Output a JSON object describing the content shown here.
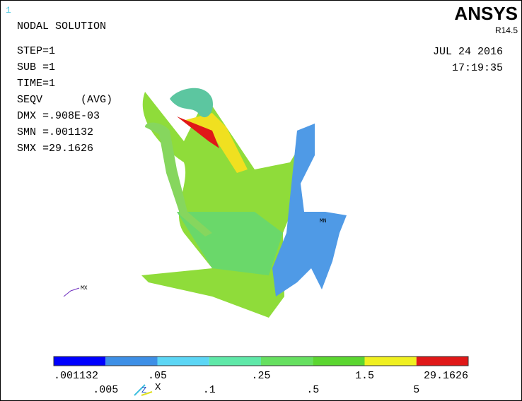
{
  "window_number": "1",
  "header": {
    "title": "NODAL SOLUTION",
    "info": [
      "STEP=1",
      "SUB =1",
      "TIME=1",
      "SEQV      (AVG)",
      "DMX =.908E-03",
      "SMN =.001132",
      "SMX =29.1626"
    ]
  },
  "brand": {
    "name": "ANSYS",
    "version": "R14.5",
    "date": "JUL 24 2016",
    "time": "17:19:35"
  },
  "markers": {
    "min": "MN",
    "max": "MX"
  },
  "triad": {
    "x": "X",
    "z": "Z"
  },
  "legend": {
    "colors": [
      "#0000ff",
      "#3d8fe6",
      "#5cd6f5",
      "#5fe8a8",
      "#66e060",
      "#5bd630",
      "#f0f020",
      "#e01818"
    ],
    "labels_top": [
      ".001132",
      ".05",
      ".25",
      "1.5",
      "29.1626"
    ],
    "labels_bottom": [
      ".005",
      ".1",
      ".5",
      "5"
    ]
  }
}
